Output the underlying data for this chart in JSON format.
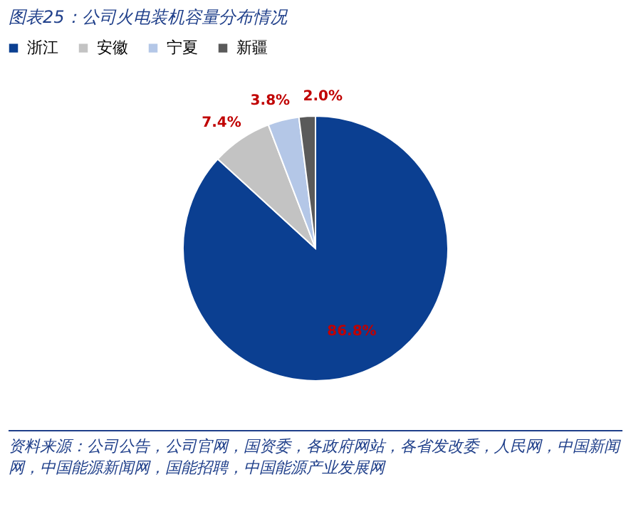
{
  "chart_data": {
    "type": "pie",
    "title": "图表25：公司火电装机容量分布情况",
    "categories": [
      "浙江",
      "安徽",
      "宁夏",
      "新疆"
    ],
    "values": [
      86.8,
      7.4,
      3.8,
      2.0
    ],
    "colors": [
      "#0b3f91",
      "#c3c3c3",
      "#b4c7e7",
      "#5a5a5a"
    ],
    "value_labels": [
      "86.8%",
      "7.4%",
      "3.8%",
      "2.0%"
    ],
    "legend": "top",
    "annotations": [
      "资料来源：公司公告，公司官网，国资委，各政府网站，各省发改委，人民网，中国新闻网，中国能源新闻网，国能招聘，中国能源产业发展网"
    ]
  }
}
